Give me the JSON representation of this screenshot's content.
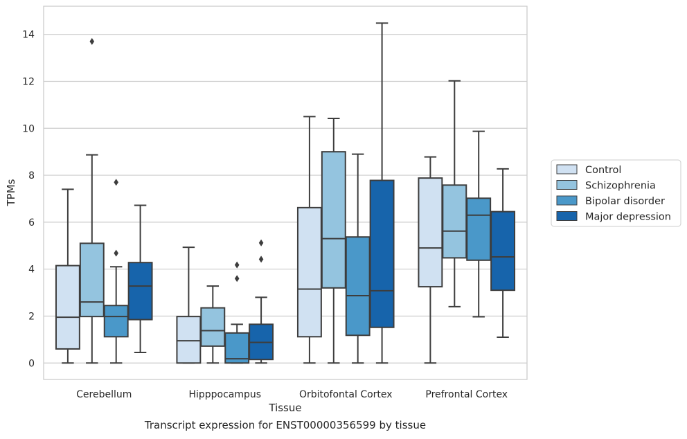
{
  "caption": "Transcript expression for ENST00000356599 by tissue",
  "chart_data": {
    "type": "box",
    "xlabel": "Tissue",
    "ylabel": "TPMs",
    "ylim": [
      -0.7,
      15.2
    ],
    "yticks": [
      0,
      2,
      4,
      6,
      8,
      10,
      12,
      14
    ],
    "grid": "horizontal",
    "legend_position": "right",
    "categories": [
      "Cerebellum",
      "Hipppocampus",
      "Orbitofontal Cortex",
      "Prefrontal Cortex"
    ],
    "series": [
      {
        "name": "Control",
        "color": "#d0e1f2",
        "boxes": [
          {
            "whisker_low": 0,
            "q1": 0.6,
            "median": 1.95,
            "q3": 4.15,
            "whisker_high": 7.4,
            "outliers": []
          },
          {
            "whisker_low": 0,
            "q1": 0,
            "median": 0.95,
            "q3": 1.98,
            "whisker_high": 4.93,
            "outliers": []
          },
          {
            "whisker_low": 0,
            "q1": 1.12,
            "median": 3.15,
            "q3": 6.62,
            "whisker_high": 10.5,
            "outliers": []
          },
          {
            "whisker_low": 0,
            "q1": 3.25,
            "median": 4.9,
            "q3": 7.88,
            "whisker_high": 8.78,
            "outliers": []
          }
        ]
      },
      {
        "name": "Schizophrenia",
        "color": "#94c4df",
        "boxes": [
          {
            "whisker_low": 0,
            "q1": 1.98,
            "median": 2.6,
            "q3": 5.1,
            "whisker_high": 8.87,
            "outliers": [
              13.7
            ]
          },
          {
            "whisker_low": 0,
            "q1": 0.72,
            "median": 1.38,
            "q3": 2.35,
            "whisker_high": 3.28,
            "outliers": []
          },
          {
            "whisker_low": 0,
            "q1": 3.2,
            "median": 5.3,
            "q3": 9.0,
            "whisker_high": 10.42,
            "outliers": []
          },
          {
            "whisker_low": 2.4,
            "q1": 4.48,
            "median": 5.62,
            "q3": 7.58,
            "whisker_high": 12.02,
            "outliers": []
          }
        ]
      },
      {
        "name": "Bipolar disorder",
        "color": "#4a98c9",
        "boxes": [
          {
            "whisker_low": 0,
            "q1": 1.12,
            "median": 1.98,
            "q3": 2.45,
            "whisker_high": 4.1,
            "outliers": [
              4.68,
              7.7
            ]
          },
          {
            "whisker_low": 0,
            "q1": 0,
            "median": 0.18,
            "q3": 1.28,
            "whisker_high": 1.65,
            "outliers": [
              3.6,
              4.18
            ]
          },
          {
            "whisker_low": 0,
            "q1": 1.18,
            "median": 2.87,
            "q3": 5.37,
            "whisker_high": 8.9,
            "outliers": []
          },
          {
            "whisker_low": 1.97,
            "q1": 4.38,
            "median": 6.3,
            "q3": 7.02,
            "whisker_high": 9.87,
            "outliers": []
          }
        ]
      },
      {
        "name": "Major depression",
        "color": "#1764ab",
        "boxes": [
          {
            "whisker_low": 0.45,
            "q1": 1.85,
            "median": 3.28,
            "q3": 4.28,
            "whisker_high": 6.72,
            "outliers": []
          },
          {
            "whisker_low": 0,
            "q1": 0.15,
            "median": 0.88,
            "q3": 1.65,
            "whisker_high": 2.8,
            "outliers": [
              4.42,
              5.12
            ]
          },
          {
            "whisker_low": 0,
            "q1": 1.52,
            "median": 3.08,
            "q3": 7.78,
            "whisker_high": 14.48,
            "outliers": []
          },
          {
            "whisker_low": 1.1,
            "q1": 3.1,
            "median": 4.52,
            "q3": 6.45,
            "whisker_high": 8.27,
            "outliers": []
          }
        ]
      }
    ]
  }
}
